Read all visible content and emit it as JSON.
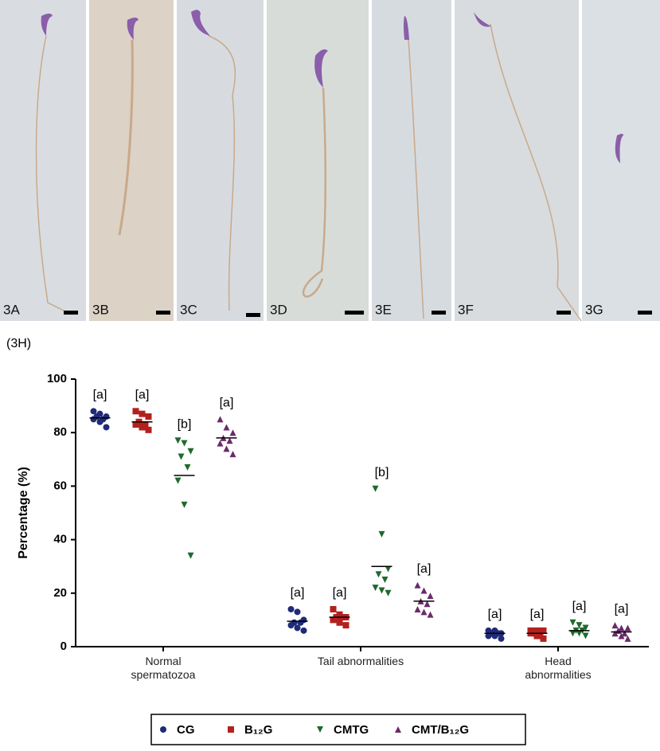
{
  "panels": [
    "3A",
    "3B",
    "3C",
    "3D",
    "3E",
    "3F",
    "3G"
  ],
  "chart_data": {
    "type": "dotplot",
    "figure_label": "(3H)",
    "y_label": "Percentage (%)",
    "categories": [
      "Normal spermatozoa",
      "Tail abnormalities",
      "Head abnormalities"
    ],
    "ylim": [
      0,
      100
    ],
    "yticks": [
      0,
      20,
      40,
      60,
      80,
      100
    ],
    "series": [
      {
        "name": "CG",
        "color": "#1f2a78",
        "marker": "circle",
        "values": [
          [
            88,
            87,
            86,
            86,
            85,
            85,
            84,
            82
          ],
          [
            14,
            13,
            10,
            9,
            9,
            8,
            7,
            6
          ],
          [
            6,
            6,
            5,
            5,
            5,
            4,
            4,
            3
          ]
        ],
        "means": [
          85.5,
          9.5,
          5
        ],
        "labels": [
          "[a]",
          "[a]",
          "[a]"
        ]
      },
      {
        "name": "B₁₂G",
        "color": "#b3211e",
        "marker": "square",
        "values": [
          [
            88,
            87,
            86,
            84,
            83,
            83,
            82,
            81
          ],
          [
            14,
            12,
            11,
            11,
            11,
            10,
            9,
            8
          ],
          [
            6,
            6,
            6,
            5,
            5,
            5,
            4,
            3
          ]
        ],
        "means": [
          84,
          11,
          5
        ],
        "labels": [
          "[a]",
          "[a]",
          "[a]"
        ]
      },
      {
        "name": "CMTG",
        "color": "#1e6a2c",
        "marker": "triangle-down",
        "values": [
          [
            77,
            76,
            73,
            71,
            67,
            62,
            53,
            34
          ],
          [
            59,
            42,
            29,
            27,
            25,
            22,
            21,
            20
          ],
          [
            9,
            8,
            7,
            6,
            6,
            5,
            5,
            4
          ]
        ],
        "means": [
          64,
          30,
          6
        ],
        "labels": [
          "[b]",
          "[b]",
          "[a]"
        ]
      },
      {
        "name": "CMT/B₁₂G",
        "color": "#6b2a6b",
        "marker": "triangle-up",
        "values": [
          [
            85,
            82,
            80,
            78,
            77,
            76,
            74,
            72
          ],
          [
            23,
            21,
            19,
            17,
            16,
            14,
            13,
            12
          ],
          [
            8,
            7,
            7,
            6,
            5,
            5,
            4,
            3
          ]
        ],
        "means": [
          78,
          17,
          5.5
        ],
        "labels": [
          "[a]",
          "[a]",
          "[a]"
        ]
      }
    ]
  }
}
